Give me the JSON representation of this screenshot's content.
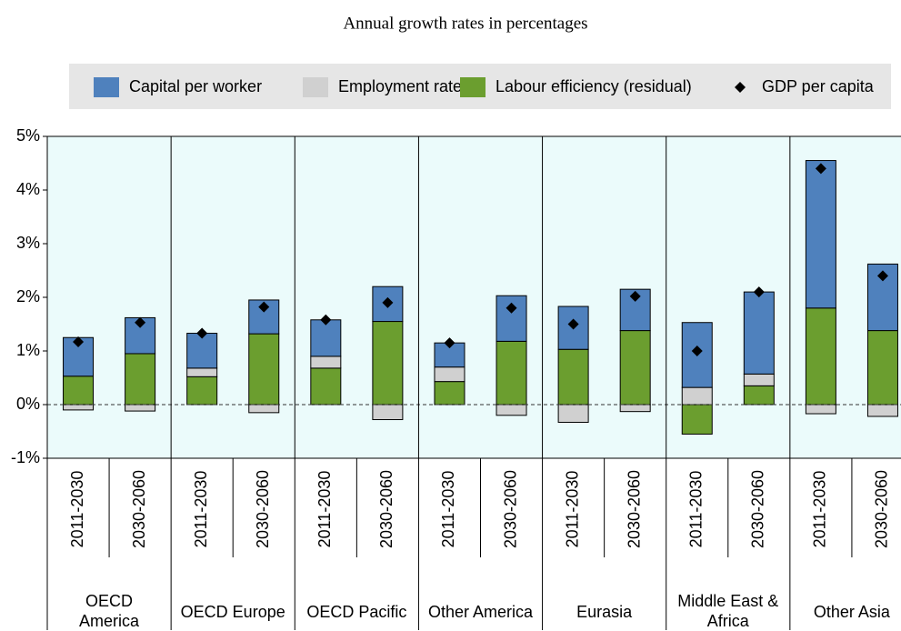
{
  "chart_data": {
    "type": "stacked-bar",
    "title": "Annual growth rates in percentages",
    "groups": [
      "OECD America",
      "OECD Europe",
      "OECD Pacific",
      "Other America",
      "Eurasia",
      "Middle East & Africa",
      "Other Asia"
    ],
    "categories": [
      "2011-2030",
      "2030-2060",
      "2011-2030",
      "2030-2060",
      "2011-2030",
      "2030-2060",
      "2011-2030",
      "2030-2060",
      "2011-2030",
      "2030-2060",
      "2011-2030",
      "2030-2060",
      "2011-2030",
      "2030-2060"
    ],
    "series": [
      {
        "name": "Capital per worker",
        "color": "#4f81bd",
        "kind": "bar",
        "values": [
          0.72,
          0.67,
          0.65,
          0.63,
          0.68,
          0.65,
          0.45,
          0.85,
          0.8,
          0.77,
          1.21,
          1.53,
          2.75,
          1.24
        ]
      },
      {
        "name": "Employment rate",
        "color": "#d0d0d0",
        "kind": "bar",
        "values": [
          -0.1,
          -0.12,
          0.16,
          -0.15,
          0.22,
          -0.28,
          0.27,
          -0.2,
          -0.33,
          -0.13,
          0.32,
          0.22,
          -0.17,
          -0.22
        ]
      },
      {
        "name": "Labour efficiency (residual)",
        "color": "#6b9e2f",
        "kind": "bar",
        "values": [
          0.53,
          0.95,
          0.52,
          1.32,
          0.68,
          1.55,
          0.43,
          1.18,
          1.03,
          1.38,
          -0.55,
          0.35,
          1.8,
          1.38
        ]
      },
      {
        "name": "GDP per capita",
        "color": "#000000",
        "kind": "diamond",
        "values": [
          1.17,
          1.53,
          1.33,
          1.82,
          1.58,
          1.9,
          1.15,
          1.8,
          1.5,
          2.02,
          1.0,
          2.1,
          4.4,
          2.4
        ]
      }
    ],
    "ylim": [
      -1,
      5
    ],
    "yticks": [
      {
        "value": -1,
        "label": "-1%"
      },
      {
        "value": 0,
        "label": "0%"
      },
      {
        "value": 1,
        "label": "1%"
      },
      {
        "value": 2,
        "label": "2%"
      },
      {
        "value": 3,
        "label": "3%"
      },
      {
        "value": 4,
        "label": "4%"
      },
      {
        "value": 5,
        "label": "5%"
      }
    ],
    "zero_line": "dashed",
    "legend": "top"
  }
}
